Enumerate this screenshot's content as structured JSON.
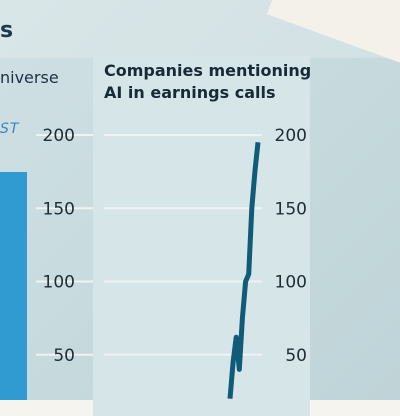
{
  "page": {
    "heading_fragment": "s",
    "left_chart": {
      "title_fragment": "niverse",
      "legend_fragment": "ST"
    }
  },
  "chart_data": [
    {
      "type": "line",
      "title_lines": [
        "Companies mentioning",
        "AI in earnings calls"
      ],
      "ylim": [
        0,
        200
      ],
      "yticks": [
        50,
        100,
        150,
        200
      ],
      "ytick_labels": [
        "50",
        "100",
        "150",
        "200"
      ],
      "y_axis_side": "right",
      "grid": true,
      "x": [
        1,
        2,
        3,
        4,
        5,
        6,
        7,
        8,
        9,
        10
      ],
      "values": [
        20,
        45,
        62,
        40,
        75,
        100,
        105,
        150,
        175,
        195
      ],
      "color": "#0f5b78"
    },
    {
      "type": "bar",
      "yticks": [
        50,
        100,
        150,
        200
      ],
      "ytick_labels": [
        "50",
        "100",
        "150",
        "200"
      ],
      "ylim": [
        0,
        200
      ],
      "grid": true,
      "values": [
        175
      ],
      "color": "#2f9bd1"
    }
  ]
}
